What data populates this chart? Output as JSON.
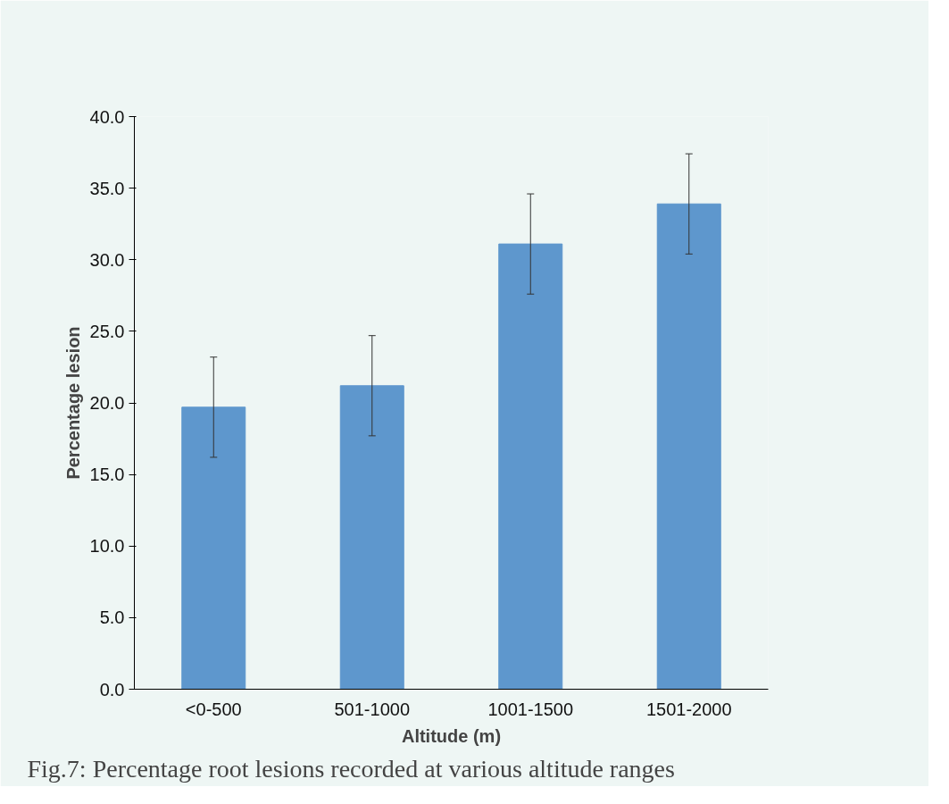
{
  "chart_data": {
    "type": "bar",
    "xlabel": "Altitude (m)",
    "ylabel": "Percentage lesion",
    "categories": [
      "<0-500",
      "501-1000",
      "1001-1500",
      "1501-2000"
    ],
    "values": [
      19.7,
      21.2,
      31.1,
      33.9
    ],
    "errors": [
      3.5,
      3.5,
      3.5,
      3.5
    ],
    "color": "#5e97cd",
    "ylim": [
      0,
      40
    ],
    "yticks": [
      {
        "value": 0,
        "label": "0.0"
      },
      {
        "value": 5,
        "label": "5.0"
      },
      {
        "value": 10,
        "label": "10.0"
      },
      {
        "value": 15,
        "label": "15.0"
      },
      {
        "value": 20,
        "label": "20.0"
      },
      {
        "value": 25,
        "label": "25.0"
      },
      {
        "value": 30,
        "label": "30.0"
      },
      {
        "value": 35,
        "label": "35.0"
      },
      {
        "value": 40,
        "label": "40.0"
      }
    ],
    "grid": false,
    "annotations": [
      "Fig.7: Percentage root lesions recorded at various altitude ranges"
    ]
  }
}
